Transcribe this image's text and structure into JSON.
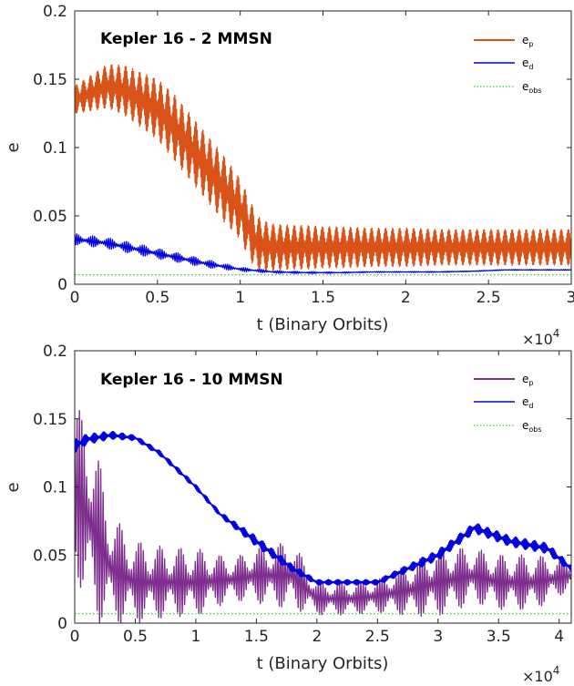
{
  "chart_data": [
    {
      "type": "line",
      "title": "Kepler 16 - 2 MMSN",
      "xlabel": "t (Binary Orbits)",
      "ylabel": "e",
      "x_multiplier": "×10",
      "x_multiplier_exp": "4",
      "xlim": [
        0,
        3
      ],
      "ylim": [
        0,
        0.2
      ],
      "x_ticks": [
        "0",
        "0.5",
        "1",
        "1.5",
        "2",
        "2.5",
        "3"
      ],
      "y_ticks": [
        "0",
        "0.05",
        "0.1",
        "0.15",
        "0.2"
      ],
      "legend_position": "top-right",
      "legend": [
        {
          "base": "e",
          "sub": "p"
        },
        {
          "base": "e",
          "sub": "d"
        },
        {
          "base": "e",
          "sub": "obs"
        }
      ],
      "series": [
        {
          "color": "#d95319",
          "style": "solid",
          "x": [
            0,
            0.1,
            0.2,
            0.3,
            0.4,
            0.5,
            0.6,
            0.7,
            0.8,
            0.9,
            1.0,
            1.05,
            1.1,
            1.15,
            1.2,
            1.3,
            1.4,
            1.5,
            1.6,
            1.8,
            2.0,
            2.2,
            2.4,
            2.6,
            2.8,
            3.0
          ],
          "mean": [
            0.135,
            0.14,
            0.145,
            0.142,
            0.135,
            0.128,
            0.115,
            0.1,
            0.085,
            0.07,
            0.055,
            0.042,
            0.03,
            0.028,
            0.027,
            0.027,
            0.027,
            0.027,
            0.027,
            0.027,
            0.027,
            0.027,
            0.027,
            0.027,
            0.027,
            0.027
          ],
          "amplitude": [
            0.01,
            0.013,
            0.016,
            0.018,
            0.02,
            0.022,
            0.024,
            0.024,
            0.024,
            0.024,
            0.022,
            0.022,
            0.02,
            0.018,
            0.017,
            0.016,
            0.016,
            0.015,
            0.015,
            0.014,
            0.014,
            0.013,
            0.013,
            0.013,
            0.013,
            0.013
          ]
        },
        {
          "color": "#0000e0",
          "style": "solid",
          "x": [
            0,
            0.2,
            0.4,
            0.6,
            0.8,
            1.0,
            1.2,
            1.4,
            1.6,
            1.8,
            2.0,
            2.2,
            2.4,
            2.6,
            2.8,
            3.0
          ],
          "mean": [
            0.033,
            0.03,
            0.025,
            0.02,
            0.015,
            0.011,
            0.009,
            0.0085,
            0.0085,
            0.009,
            0.009,
            0.009,
            0.0095,
            0.0105,
            0.0105,
            0.0105
          ],
          "amplitude": [
            0.004,
            0.004,
            0.004,
            0.0035,
            0.003,
            0.0015,
            0.001,
            0.0008,
            0.0005,
            0.0004,
            0.0004,
            0.0004,
            0.0003,
            0.0003,
            0.0003,
            0.0003
          ]
        },
        {
          "color": "#33cc33",
          "style": "dotted",
          "x": [
            0,
            3
          ],
          "mean": [
            0.0069,
            0.0069
          ],
          "amplitude": [
            0,
            0
          ]
        }
      ]
    },
    {
      "type": "line",
      "title": "Kepler 16 - 10 MMSN",
      "xlabel": "t (Binary Orbits)",
      "ylabel": "e",
      "x_multiplier": "×10",
      "x_multiplier_exp": "4",
      "xlim": [
        0,
        4.1
      ],
      "ylim": [
        0,
        0.2
      ],
      "x_ticks": [
        "0",
        "0.5",
        "1",
        "1.5",
        "2",
        "2.5",
        "3",
        "3.5",
        "4"
      ],
      "y_ticks": [
        "0",
        "0.05",
        "0.1",
        "0.15",
        "0.2"
      ],
      "legend_position": "top-right",
      "legend": [
        {
          "base": "e",
          "sub": "p"
        },
        {
          "base": "e",
          "sub": "d"
        },
        {
          "base": "e",
          "sub": "obs"
        }
      ],
      "series": [
        {
          "color": "#7e2f8e",
          "style": "solid",
          "x": [
            0,
            0.1,
            0.2,
            0.3,
            0.5,
            0.8,
            1.0,
            1.3,
            1.5,
            1.8,
            2.0,
            2.3,
            2.5,
            2.8,
            3.0,
            3.3,
            3.5,
            3.8,
            4.1
          ],
          "mean": [
            0.1,
            0.08,
            0.06,
            0.04,
            0.03,
            0.03,
            0.03,
            0.032,
            0.035,
            0.035,
            0.018,
            0.018,
            0.02,
            0.025,
            0.03,
            0.035,
            0.03,
            0.03,
            0.035
          ],
          "amplitude": [
            0.06,
            0.07,
            0.06,
            0.04,
            0.03,
            0.025,
            0.025,
            0.015,
            0.02,
            0.025,
            0.012,
            0.012,
            0.012,
            0.02,
            0.025,
            0.02,
            0.02,
            0.02,
            0.01
          ]
        },
        {
          "color": "#0000e0",
          "style": "solid",
          "x": [
            0,
            0.1,
            0.3,
            0.5,
            0.7,
            1.0,
            1.2,
            1.5,
            1.8,
            2.0,
            2.5,
            3.0,
            3.3,
            3.6,
            3.9,
            4.1
          ],
          "mean": [
            0.13,
            0.135,
            0.138,
            0.136,
            0.125,
            0.1,
            0.08,
            0.06,
            0.04,
            0.03,
            0.03,
            0.05,
            0.07,
            0.06,
            0.055,
            0.04
          ],
          "amplitude": [
            0.005,
            0.004,
            0.003,
            0.002,
            0.002,
            0.002,
            0.002,
            0.004,
            0.003,
            0.002,
            0.002,
            0.004,
            0.004,
            0.004,
            0.004,
            0.003
          ]
        },
        {
          "color": "#33cc33",
          "style": "dotted",
          "x": [
            0,
            4.1
          ],
          "mean": [
            0.0069,
            0.0069
          ],
          "amplitude": [
            0,
            0
          ]
        }
      ]
    }
  ]
}
